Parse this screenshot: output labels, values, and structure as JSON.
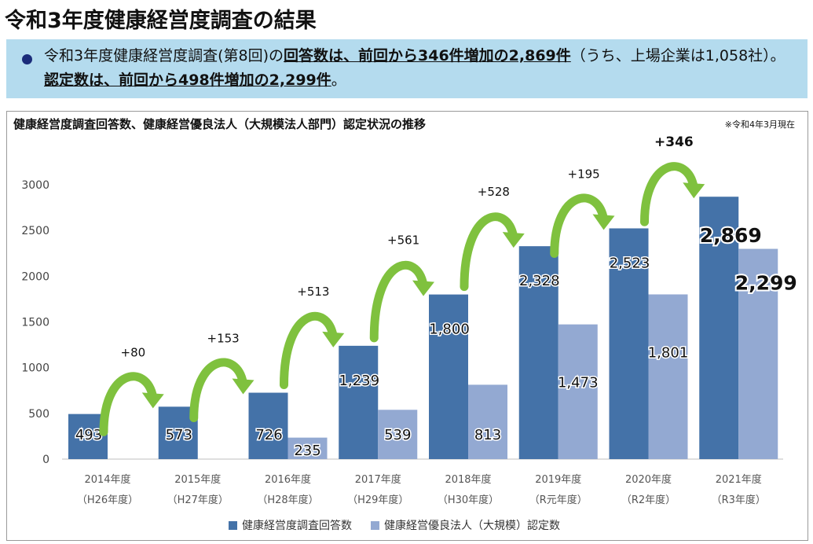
{
  "page_title": "令和3年度健康経営度調査の結果",
  "summary": {
    "part1": "令和3年度健康経営度調査(第8回)の",
    "bold1": "回答数は、前回から346件増加の2,869件",
    "part2": "（うち、上場企業は1,058社）。",
    "bold2": "認定数は、前回から498件増加の2,299件",
    "part3": "。"
  },
  "chart_data": {
    "type": "bar",
    "title": "健康経営度調査回答数、健康経営優良法人（大規模法人部門）認定状況の推移",
    "note": "※令和4年3月現在",
    "categories": [
      {
        "year": "2014年度",
        "era": "（H26年度）"
      },
      {
        "year": "2015年度",
        "era": "（H27年度）"
      },
      {
        "year": "2016年度",
        "era": "（H28年度）"
      },
      {
        "year": "2017年度",
        "era": "（H29年度）"
      },
      {
        "year": "2018年度",
        "era": "（H30年度）"
      },
      {
        "year": "2019年度",
        "era": "（R元年度）"
      },
      {
        "year": "2020年度",
        "era": "（R2年度）"
      },
      {
        "year": "2021年度",
        "era": "（R3年度）"
      }
    ],
    "series": [
      {
        "name": "健康経営度調査回答数",
        "color": "#4472a8",
        "values": [
          493,
          573,
          726,
          1239,
          1800,
          2328,
          2523,
          2869
        ],
        "labels": [
          "493",
          "573",
          "726",
          "1,239",
          "1,800",
          "2,328",
          "2,523",
          "2,869"
        ]
      },
      {
        "name": "健康経営優良法人（大規模）認定数",
        "color": "#93a9d2",
        "values": [
          null,
          null,
          235,
          539,
          813,
          1473,
          1801,
          2299
        ],
        "labels": [
          "",
          "",
          "235",
          "539",
          "813",
          "1,473",
          "1,801",
          "2,299"
        ]
      }
    ],
    "increments": [
      "+80",
      "+153",
      "+513",
      "+561",
      "+528",
      "+195",
      "+346"
    ],
    "ylim": [
      0,
      3000
    ],
    "yticks": [
      "0",
      "500",
      "1000",
      "1500",
      "2000",
      "2500",
      "3000"
    ],
    "arrow_color": "#7fc13e"
  }
}
